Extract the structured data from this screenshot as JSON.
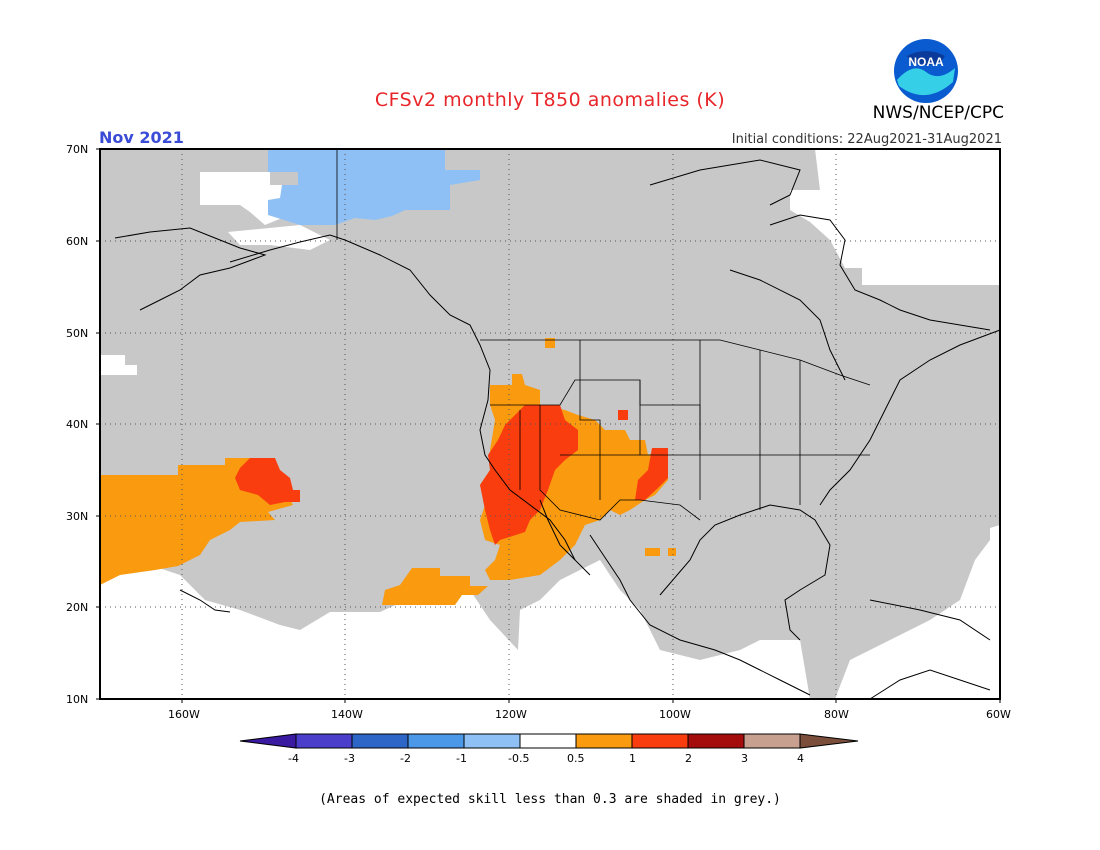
{
  "header": {
    "title": "CFSv2 monthly T850 anomalies (K)",
    "period": "Nov 2021",
    "initial_conditions": "Initial conditions: 22Aug2021-31Aug2021",
    "agency": "NWS/NCEP/CPC"
  },
  "logo": {
    "text": "NOAA",
    "icon": "noaa-logo-icon"
  },
  "axes": {
    "lat_labels": [
      "70N",
      "60N",
      "50N",
      "40N",
      "30N",
      "20N",
      "10N"
    ],
    "lon_labels": [
      "160W",
      "140W",
      "120W",
      "100W",
      "80W",
      "60W"
    ]
  },
  "colorbar": {
    "labels": [
      "-4",
      "-3",
      "-2",
      "-1",
      "-0.5",
      "0.5",
      "1",
      "2",
      "3",
      "4"
    ],
    "colors": [
      "#3a1aa0",
      "#4a3ecb",
      "#2e66c8",
      "#4c98e8",
      "#8ec0f5",
      "#ffffff",
      "#f99a0f",
      "#f93d0f",
      "#a50d0d",
      "#c8a090",
      "#7a4e3a"
    ]
  },
  "colors": {
    "grey": "#c8c8c8",
    "light_blue": "#8ec0f5",
    "orange": "#f99a0f",
    "red": "#f93d0f"
  },
  "footnote": "(Areas of expected skill less than 0.3 are shaded in grey.)"
}
